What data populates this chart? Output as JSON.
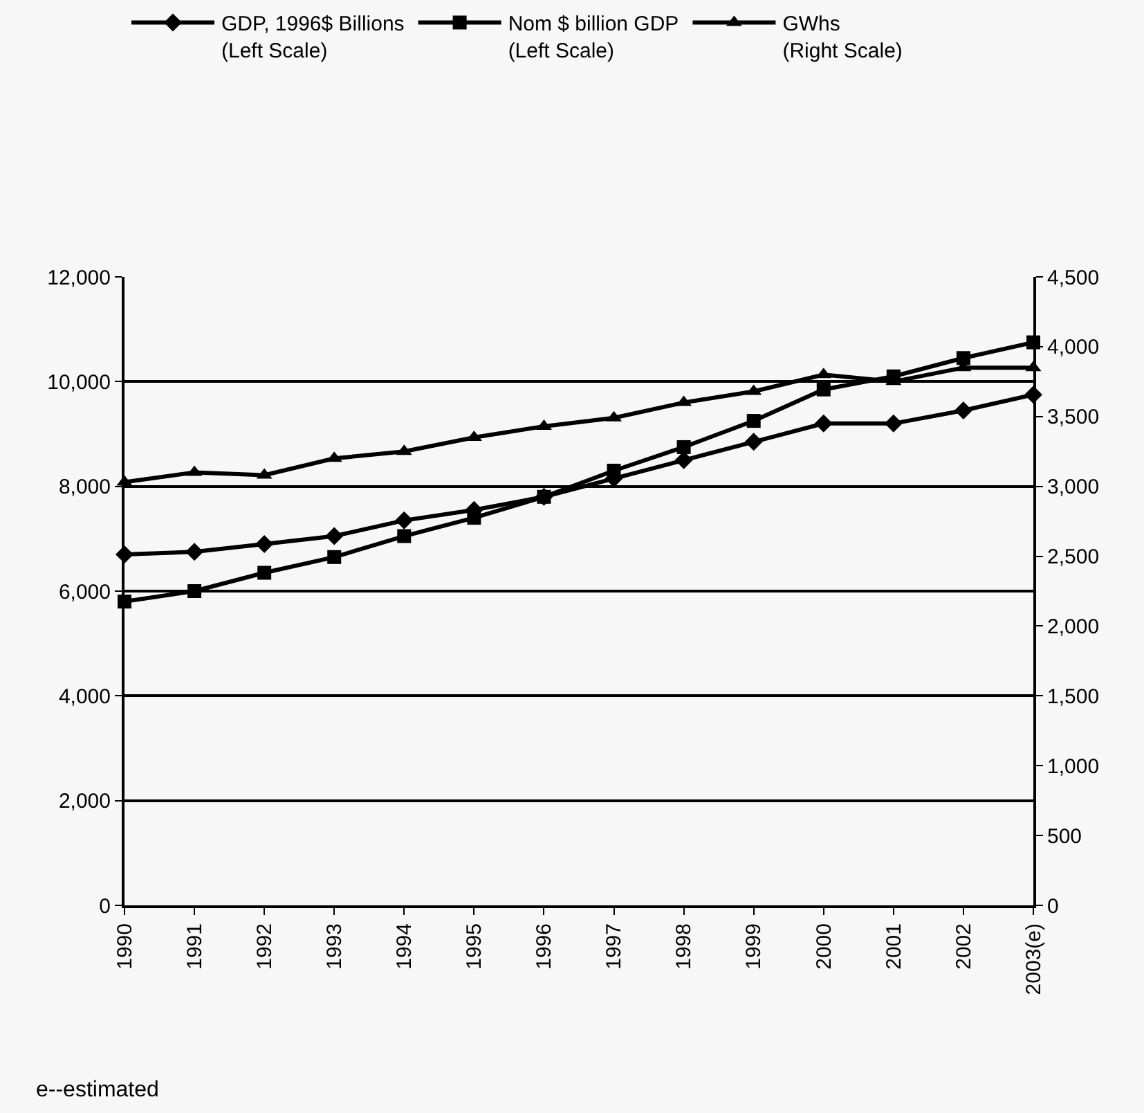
{
  "chart_data": {
    "type": "line",
    "categories": [
      "1990",
      "1991",
      "1992",
      "1993",
      "1994",
      "1995",
      "1996",
      "1997",
      "1998",
      "1999",
      "2000",
      "2001",
      "2002",
      "2003(e)"
    ],
    "series": [
      {
        "name": "GDP, 1996$ Billions\n(Left Scale)",
        "color": "#000000",
        "marker": "diamond",
        "values": [
          6700,
          6750,
          6900,
          7050,
          7350,
          7550,
          7800,
          8150,
          8500,
          8850,
          9200,
          9200,
          9450,
          9750
        ]
      },
      {
        "name": "Nom $ billion GDP\n(Left Scale)",
        "color": "#000000",
        "marker": "square",
        "values": [
          5800,
          6000,
          6350,
          6650,
          7050,
          7400,
          7800,
          8300,
          8750,
          9250,
          9850,
          10100,
          10450,
          10750
        ]
      },
      {
        "name": "GWhs\n(Right Scale)",
        "color": "#000000",
        "marker": "triangle",
        "axis": "y2",
        "values": [
          3030,
          3100,
          3080,
          3200,
          3250,
          3350,
          3430,
          3490,
          3600,
          3680,
          3800,
          3750,
          3850,
          3850
        ]
      }
    ],
    "ylim": [
      0,
      12000
    ],
    "yticks": [
      {
        "value": 0,
        "label": "0"
      },
      {
        "value": 2000,
        "label": "2,000"
      },
      {
        "value": 4000,
        "label": "4,000"
      },
      {
        "value": 6000,
        "label": "6,000"
      },
      {
        "value": 8000,
        "label": "8,000"
      },
      {
        "value": 10000,
        "label": "10,000"
      },
      {
        "value": 12000,
        "label": "12,000"
      }
    ],
    "y2lim": [
      0,
      4500
    ],
    "y2ticks": [
      {
        "value": 0,
        "label": "0"
      },
      {
        "value": 500,
        "label": "500"
      },
      {
        "value": 1000,
        "label": "1,000"
      },
      {
        "value": 1500,
        "label": "1,500"
      },
      {
        "value": 2000,
        "label": "2,000"
      },
      {
        "value": 2500,
        "label": "2,500"
      },
      {
        "value": 3000,
        "label": "3,000"
      },
      {
        "value": 3500,
        "label": "3,500"
      },
      {
        "value": 4000,
        "label": "4,000"
      },
      {
        "value": 4500,
        "label": "4,500"
      }
    ],
    "grid": "y",
    "legend": "top",
    "line_style": "solid",
    "annotations": [
      "e--estimated"
    ]
  }
}
